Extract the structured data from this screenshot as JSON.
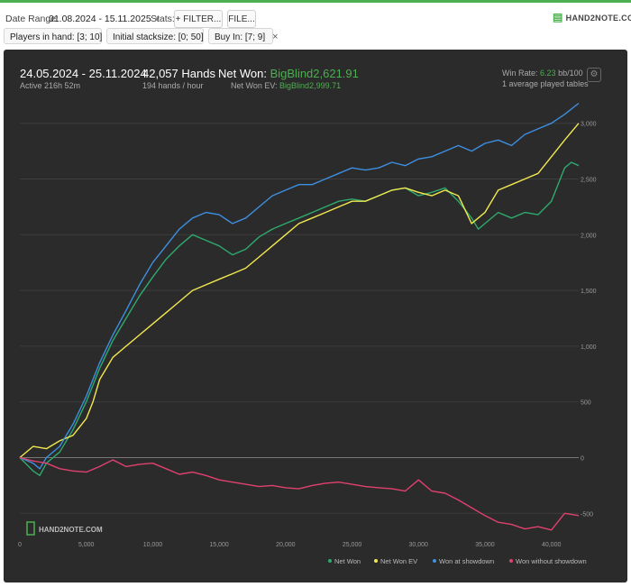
{
  "toolbar": {
    "date_range_label": "Date Range:",
    "date_range_value": "01.08.2024 - 15.11.2025",
    "stats_label": "Stats:",
    "filter_button": "+ FILTER...",
    "file_button": "FILE..."
  },
  "brand": "HAND2NOTE.COM",
  "filters": [
    {
      "label": "Players in hand: [3; 10]"
    },
    {
      "label": "Initial stacksize: [0; 50]"
    },
    {
      "label": "Buy In: [7; 9]"
    }
  ],
  "summary": {
    "date_span": "24.05.2024 - 25.11.2024",
    "active": "Active 216h 52m",
    "hands": "42,057 Hands",
    "hands_per_hour": "194 hands / hour",
    "net_won_label": "Net Won:",
    "net_won_value": "BigBlind2,621.91",
    "net_won_ev_label": "Net Won  EV:",
    "net_won_ev_value": "BigBlind2,999.71",
    "win_rate_label": "Win Rate:",
    "win_rate_value": "6.23",
    "win_rate_unit": "bb/100",
    "tables": "1 average played tables"
  },
  "watermark": "HAND2NOTE.COM",
  "chart_data": {
    "type": "line",
    "xlim": [
      0,
      42057
    ],
    "ylim": [
      -700,
      3200
    ],
    "x_ticks": [
      0,
      5000,
      10000,
      15000,
      20000,
      25000,
      30000,
      35000,
      40000
    ],
    "x_tick_labels": [
      "0",
      "5,000",
      "10,000",
      "15,000",
      "20,000",
      "25,000",
      "30,000",
      "35,000",
      "40,000"
    ],
    "y_ticks": [
      -500,
      0,
      500,
      1000,
      1500,
      2000,
      2500,
      3000
    ],
    "y_tick_labels": [
      "-500",
      "0",
      "500",
      "1,000",
      "1,500",
      "2,000",
      "2,500",
      "3,000"
    ],
    "grid": true,
    "legend_position": "bottom-right",
    "series": [
      {
        "name": "Net Won",
        "color": "#2eaa6e",
        "x": [
          0,
          1000,
          1500,
          2000,
          3000,
          4000,
          5000,
          6000,
          7000,
          8000,
          9000,
          10000,
          11000,
          12000,
          13000,
          14000,
          15000,
          16000,
          17000,
          18000,
          19000,
          20000,
          21000,
          22000,
          23000,
          24000,
          25000,
          26000,
          27000,
          28000,
          29000,
          30000,
          31000,
          32000,
          33000,
          34000,
          34500,
          35000,
          36000,
          37000,
          38000,
          39000,
          40000,
          40500,
          41000,
          41500,
          42057
        ],
        "y": [
          0,
          -120,
          -160,
          -50,
          50,
          250,
          500,
          800,
          1050,
          1250,
          1450,
          1620,
          1780,
          1900,
          2000,
          1950,
          1900,
          1820,
          1870,
          1980,
          2050,
          2100,
          2150,
          2200,
          2250,
          2300,
          2320,
          2300,
          2350,
          2400,
          2420,
          2350,
          2380,
          2420,
          2300,
          2150,
          2050,
          2100,
          2200,
          2150,
          2200,
          2180,
          2300,
          2450,
          2600,
          2650,
          2620
        ]
      },
      {
        "name": "Net Won  EV",
        "color": "#f2e94e",
        "x": [
          0,
          1000,
          2000,
          3000,
          4000,
          5000,
          5500,
          6000,
          7000,
          8000,
          9000,
          10000,
          11000,
          12000,
          13000,
          14000,
          15000,
          16000,
          17000,
          18000,
          19000,
          20000,
          21000,
          22000,
          23000,
          24000,
          25000,
          26000,
          27000,
          28000,
          29000,
          30000,
          31000,
          32000,
          33000,
          34000,
          35000,
          36000,
          37000,
          38000,
          39000,
          40000,
          41000,
          42057
        ],
        "y": [
          0,
          100,
          80,
          150,
          200,
          350,
          500,
          700,
          900,
          1000,
          1100,
          1200,
          1300,
          1400,
          1500,
          1550,
          1600,
          1650,
          1700,
          1800,
          1900,
          2000,
          2100,
          2150,
          2200,
          2250,
          2300,
          2300,
          2350,
          2400,
          2420,
          2380,
          2350,
          2400,
          2350,
          2100,
          2200,
          2400,
          2450,
          2500,
          2550,
          2700,
          2850,
          3000
        ]
      },
      {
        "name": "Won at showdown",
        "color": "#3d8fe0",
        "x": [
          0,
          1000,
          1500,
          2000,
          3000,
          4000,
          5000,
          6000,
          7000,
          8000,
          9000,
          10000,
          11000,
          12000,
          13000,
          14000,
          15000,
          16000,
          17000,
          18000,
          19000,
          20000,
          21000,
          22000,
          23000,
          24000,
          25000,
          26000,
          27000,
          28000,
          29000,
          30000,
          31000,
          32000,
          33000,
          34000,
          35000,
          36000,
          37000,
          38000,
          39000,
          40000,
          41000,
          42057
        ],
        "y": [
          0,
          -50,
          -100,
          0,
          100,
          300,
          550,
          850,
          1100,
          1320,
          1550,
          1750,
          1900,
          2050,
          2150,
          2200,
          2180,
          2100,
          2150,
          2250,
          2350,
          2400,
          2450,
          2450,
          2500,
          2550,
          2600,
          2580,
          2600,
          2650,
          2620,
          2680,
          2700,
          2750,
          2800,
          2750,
          2820,
          2850,
          2800,
          2900,
          2950,
          3000,
          3080,
          3180
        ]
      },
      {
        "name": "Won without showdown",
        "color": "#e0416e",
        "x": [
          0,
          1000,
          2000,
          3000,
          4000,
          5000,
          6000,
          7000,
          8000,
          9000,
          10000,
          11000,
          12000,
          13000,
          14000,
          15000,
          16000,
          17000,
          18000,
          19000,
          20000,
          21000,
          22000,
          23000,
          24000,
          25000,
          26000,
          27000,
          28000,
          29000,
          30000,
          31000,
          32000,
          33000,
          34000,
          35000,
          36000,
          37000,
          38000,
          39000,
          40000,
          41000,
          42057
        ],
        "y": [
          0,
          -30,
          -50,
          -100,
          -120,
          -130,
          -80,
          -20,
          -80,
          -60,
          -50,
          -100,
          -150,
          -130,
          -160,
          -200,
          -220,
          -240,
          -260,
          -250,
          -270,
          -280,
          -250,
          -230,
          -220,
          -240,
          -260,
          -270,
          -280,
          -300,
          -200,
          -300,
          -320,
          -380,
          -450,
          -520,
          -580,
          -600,
          -640,
          -620,
          -650,
          -500,
          -520
        ]
      }
    ]
  }
}
